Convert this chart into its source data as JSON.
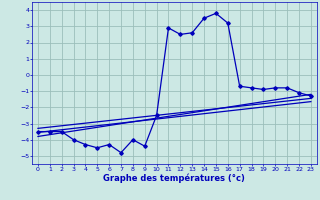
{
  "title": "",
  "xlabel": "Graphe des températures (°c)",
  "background_color": "#cce8e4",
  "line_color": "#0000bb",
  "grid_color": "#9bbfbb",
  "x_ticks": [
    0,
    1,
    2,
    3,
    4,
    5,
    6,
    7,
    8,
    9,
    10,
    11,
    12,
    13,
    14,
    15,
    16,
    17,
    18,
    19,
    20,
    21,
    22,
    23
  ],
  "ylim": [
    -5.5,
    4.5
  ],
  "xlim": [
    -0.5,
    23.5
  ],
  "yticks": [
    -5,
    -4,
    -3,
    -2,
    -1,
    0,
    1,
    2,
    3,
    4
  ],
  "temperatures": [
    -3.5,
    -3.5,
    -3.5,
    -4.0,
    -4.3,
    -4.5,
    -4.3,
    -4.8,
    -4.0,
    -4.4,
    -2.5,
    2.9,
    2.5,
    2.6,
    3.5,
    3.8,
    3.2,
    -0.7,
    -0.8,
    -0.9,
    -0.8,
    -0.8,
    -1.1,
    -1.3
  ],
  "trend1_y0": -3.3,
  "trend1_y1": -1.45,
  "trend2_y0": -3.55,
  "trend2_y1": -1.65,
  "trend3_y0": -3.8,
  "trend3_y1": -1.2
}
